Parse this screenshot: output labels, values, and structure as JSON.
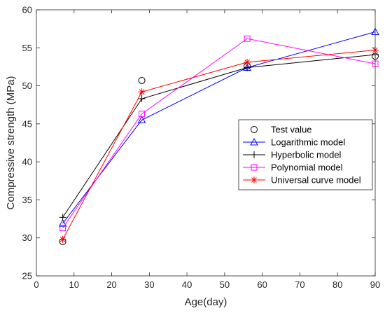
{
  "chart_data": {
    "type": "line",
    "xlabel": "Age(day)",
    "ylabel": "Compressive strength (MPa)",
    "xlim": [
      0,
      90
    ],
    "ylim": [
      25,
      60
    ],
    "xticks": [
      0,
      10,
      20,
      30,
      40,
      50,
      60,
      70,
      80,
      90
    ],
    "yticks": [
      25,
      30,
      35,
      40,
      45,
      50,
      55,
      60
    ],
    "grid": false,
    "legend_position": "right",
    "series": [
      {
        "name": "Test value",
        "marker": "circle",
        "line": false,
        "color": "#000000",
        "x": [
          7,
          28,
          56,
          90
        ],
        "y": [
          29.5,
          50.7,
          52.6,
          53.9
        ]
      },
      {
        "name": "Logarithmic model",
        "marker": "triangle",
        "line": true,
        "color": "#0000ff",
        "x": [
          7,
          28,
          56,
          90
        ],
        "y": [
          31.9,
          45.5,
          52.4,
          57.1
        ]
      },
      {
        "name": "Hyperbolic model",
        "marker": "plus",
        "line": true,
        "color": "#000000",
        "x": [
          7,
          28,
          56,
          90
        ],
        "y": [
          32.7,
          48.3,
          52.4,
          54.1
        ]
      },
      {
        "name": "Polynomial model",
        "marker": "square",
        "line": true,
        "color": "#ff00ff",
        "x": [
          7,
          28,
          56,
          90
        ],
        "y": [
          31.3,
          46.3,
          56.2,
          52.9
        ]
      },
      {
        "name": "Universal curve model",
        "marker": "asterisk",
        "line": true,
        "color": "#ff0000",
        "x": [
          7,
          28,
          56,
          90
        ],
        "y": [
          29.8,
          49.2,
          53.1,
          54.7
        ]
      }
    ]
  }
}
